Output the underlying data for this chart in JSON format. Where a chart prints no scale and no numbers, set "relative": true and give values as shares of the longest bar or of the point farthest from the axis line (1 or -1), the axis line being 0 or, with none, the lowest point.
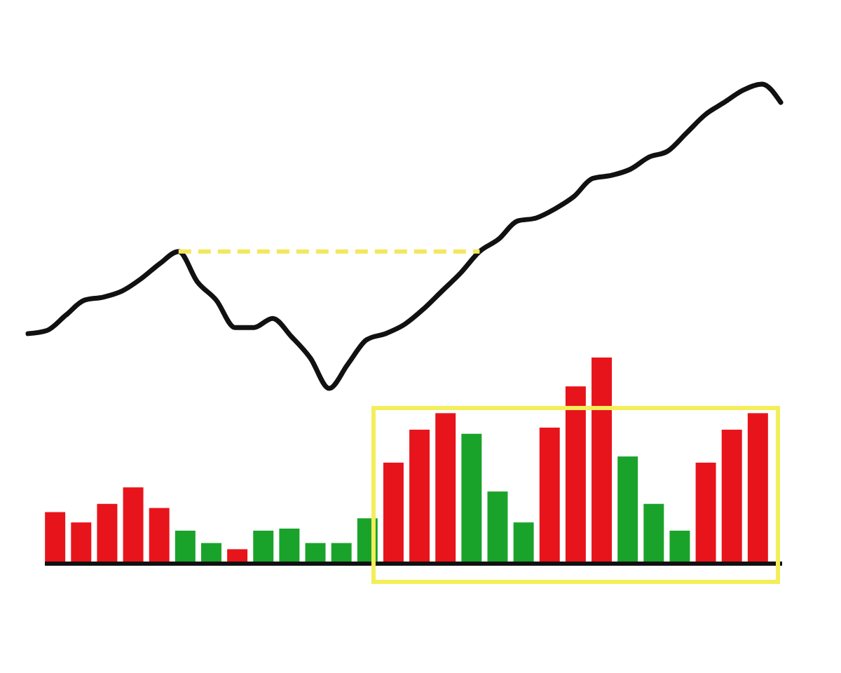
{
  "chart_data": [
    {
      "type": "line",
      "relative": true,
      "marker": "none",
      "categories": [
        null,
        null,
        null,
        null,
        null,
        null,
        null,
        null,
        null,
        null,
        null,
        null,
        null,
        null,
        null,
        null,
        null,
        null,
        null,
        null,
        null,
        null,
        null,
        null,
        null,
        null,
        null,
        null,
        null,
        null,
        null,
        null,
        null,
        null,
        null,
        null,
        null,
        null,
        null,
        null,
        null
      ],
      "series": [
        {
          "color": "#111111",
          "line_style": "solid",
          "values": [
            0.18,
            0.19,
            0.24,
            0.29,
            0.3,
            0.32,
            0.36,
            0.41,
            0.45,
            0.35,
            0.29,
            0.2,
            0.2,
            0.23,
            0.17,
            0.1,
            0,
            0.08,
            0.16,
            0.18,
            0.21,
            0.26,
            0.32,
            0.38,
            0.45,
            0.49,
            0.55,
            0.56,
            0.59,
            0.63,
            0.69,
            0.7,
            0.72,
            0.76,
            0.78,
            0.84,
            0.9,
            0.94,
            0.98,
            1,
            0.94
          ]
        },
        {
          "color": "#f2e85c",
          "line_style": "dashed",
          "values": [
            null,
            null,
            null,
            null,
            null,
            null,
            null,
            null,
            0.45,
            0.45,
            0.45,
            0.45,
            0.45,
            0.45,
            0.45,
            0.45,
            0.45,
            0.45,
            0.45,
            0.45,
            0.45,
            0.45,
            0.45,
            0.45,
            0.45,
            null,
            null,
            null,
            null,
            null,
            null,
            null,
            null,
            null,
            null,
            null,
            null,
            null,
            null,
            null,
            null
          ]
        }
      ]
    },
    {
      "type": "bar",
      "relative": true,
      "categories": [
        null,
        null,
        null,
        null,
        null,
        null,
        null,
        null,
        null,
        null,
        null,
        null,
        null,
        null,
        null,
        null,
        null,
        null,
        null,
        null,
        null,
        null,
        null,
        null,
        null,
        null,
        null,
        null
      ],
      "values": [
        0.25,
        0.2,
        0.29,
        0.37,
        0.27,
        0.16,
        0.1,
        0.07,
        0.16,
        0.17,
        0.1,
        0.1,
        0.22,
        0.49,
        0.65,
        0.73,
        0.63,
        0.35,
        0.2,
        0.66,
        0.86,
        1,
        0.52,
        0.29,
        0.16,
        0.49,
        0.65,
        0.73
      ],
      "colors": [
        "#e8141b",
        "#e8141b",
        "#e8141b",
        "#e8141b",
        "#e8141b",
        "#1aa32a",
        "#1aa32a",
        "#e8141b",
        "#1aa32a",
        "#1aa32a",
        "#1aa32a",
        "#1aa32a",
        "#1aa32a",
        "#e8141b",
        "#e8141b",
        "#e8141b",
        "#1aa32a",
        "#1aa32a",
        "#1aa32a",
        "#e8141b",
        "#e8141b",
        "#e8141b",
        "#1aa32a",
        "#1aa32a",
        "#1aa32a",
        "#e8141b",
        "#e8141b",
        "#e8141b"
      ]
    }
  ]
}
